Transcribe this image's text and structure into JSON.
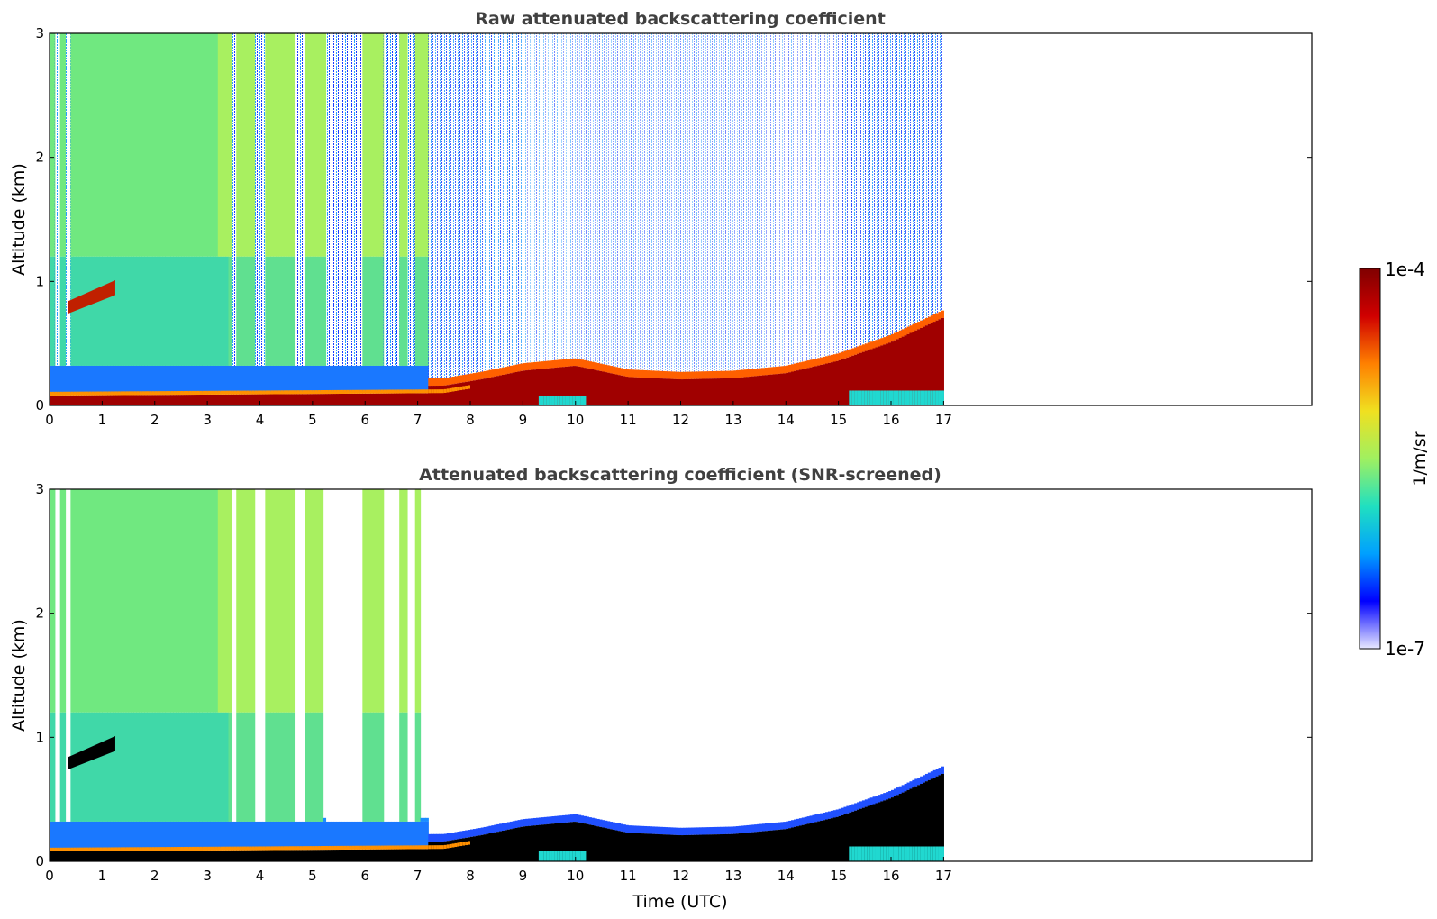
{
  "chart_data": [
    {
      "type": "heatmap",
      "title": "Raw attenuated backscattering coefficient",
      "xlabel": "",
      "ylabel": "Altitude (km)",
      "xlim": [
        0,
        24
      ],
      "ylim": [
        0,
        3
      ],
      "data_end_time": 17,
      "x_ticks": [
        0,
        1,
        2,
        3,
        4,
        5,
        6,
        7,
        8,
        9,
        10,
        11,
        12,
        13,
        14,
        15,
        16,
        17
      ],
      "y_ticks": [
        0,
        1,
        2,
        3
      ],
      "features": {
        "surface_layer_top_km": [
          [
            0,
            0.08
          ],
          [
            4,
            0.09
          ],
          [
            7.5,
            0.1
          ],
          [
            8.2,
            0.15
          ],
          [
            9,
            0.22
          ],
          [
            10,
            0.26
          ],
          [
            11,
            0.17
          ],
          [
            12,
            0.15
          ],
          [
            13,
            0.16
          ],
          [
            14,
            0.2
          ],
          [
            15,
            0.3
          ],
          [
            16,
            0.45
          ],
          [
            17,
            0.65
          ]
        ],
        "elevated_layer": {
          "time_start": 0.35,
          "time_end": 1.25,
          "alt_start_km": 0.78,
          "alt_end_km": 0.95
        },
        "clear_gaps_utc": [
          [
            0.12,
            0.2
          ],
          [
            0.3,
            0.38
          ],
          [
            3.45,
            3.55
          ],
          [
            3.9,
            4.1
          ],
          [
            4.65,
            4.85
          ],
          [
            5.25,
            5.95
          ],
          [
            6.35,
            6.65
          ],
          [
            6.8,
            6.95
          ]
        ]
      }
    },
    {
      "type": "heatmap",
      "title": "Attenuated backscattering coefficient (SNR-screened)",
      "xlabel": "Time (UTC)",
      "ylabel": "Altitude (km)",
      "xlim": [
        0,
        24
      ],
      "ylim": [
        0,
        3
      ],
      "data_end_time": 17,
      "x_ticks": [
        0,
        1,
        2,
        3,
        4,
        5,
        6,
        7,
        8,
        9,
        10,
        11,
        12,
        13,
        14,
        15,
        16,
        17
      ],
      "y_ticks": [
        0,
        1,
        2,
        3
      ]
    }
  ],
  "colorbar": {
    "label": "1/m/sr",
    "tick_max": "1e-4",
    "tick_min": "1e-7",
    "scale": "log",
    "colormap": "jet",
    "colors": [
      "#e8e8ff",
      "#0000ff",
      "#00a0ff",
      "#20e0c0",
      "#a0f060",
      "#f0e020",
      "#ff8000",
      "#d00000",
      "#800000"
    ]
  }
}
